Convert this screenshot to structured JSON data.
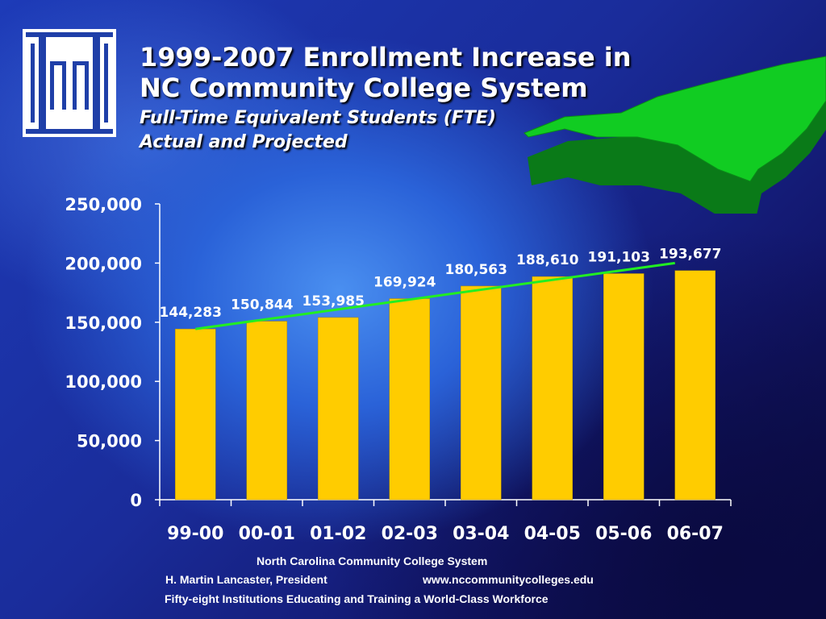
{
  "slide": {
    "title_line1": "1999-2007 Enrollment Increase in",
    "title_line2": "NC Community College System",
    "subtitle_line1": "Full-Time Equivalent Students (FTE)",
    "subtitle_line2": "Actual and Projected"
  },
  "footer": {
    "organization": "North Carolina Community College System",
    "president": "H. Martin Lancaster, President",
    "website": "www.nccommunitycolleges.edu",
    "tagline": "Fifty-eight Institutions Educating and Training a World-Class Workforce"
  },
  "colors": {
    "bar": "#ffcc00",
    "trendline": "#22ee22",
    "map_fill": "#11cc22",
    "text": "#ffffff"
  },
  "chart_data": {
    "type": "bar",
    "categories": [
      "99-00",
      "00-01",
      "01-02",
      "02-03",
      "03-04",
      "04-05",
      "05-06",
      "06-07"
    ],
    "values": [
      144283,
      150844,
      153985,
      169924,
      180563,
      188610,
      191103,
      193677
    ],
    "data_labels": [
      "144,283",
      "150,844",
      "153,985",
      "169,924",
      "180,563",
      "188,610",
      "191,103",
      "193,677"
    ],
    "y_ticks": [
      "0",
      "50,000",
      "100,000",
      "150,000",
      "200,000",
      "250,000"
    ],
    "y_tick_values": [
      0,
      50000,
      100000,
      150000,
      200000,
      250000
    ],
    "ylim": [
      0,
      250000
    ],
    "trendline": {
      "start": 144283,
      "end": 200000
    },
    "xlabel": "",
    "ylabel": "",
    "grid": false,
    "legend": "none"
  }
}
